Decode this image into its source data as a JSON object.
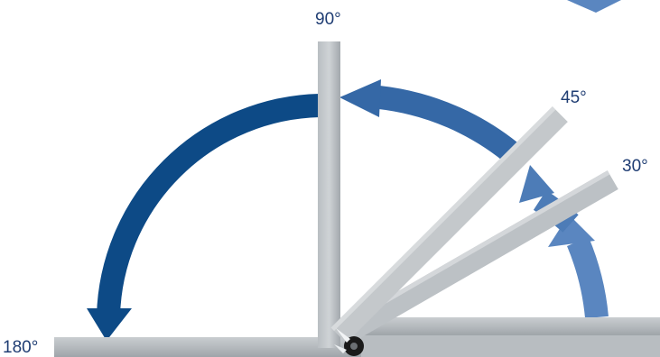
{
  "labels": {
    "deg_90": "90°",
    "deg_45": "45°",
    "deg_30": "30°",
    "deg_180": "180°"
  },
  "colors": {
    "label_text": "#1f3d73",
    "arrow_dark": "#0d4a86",
    "arrow_mid": "#3568a6",
    "arrow_light": "#5a86c0",
    "steel_light": "#c3c8cc",
    "steel_mid": "#a9aeb2",
    "steel_dark": "#8a9095",
    "pivot": "#1a1a1a"
  }
}
